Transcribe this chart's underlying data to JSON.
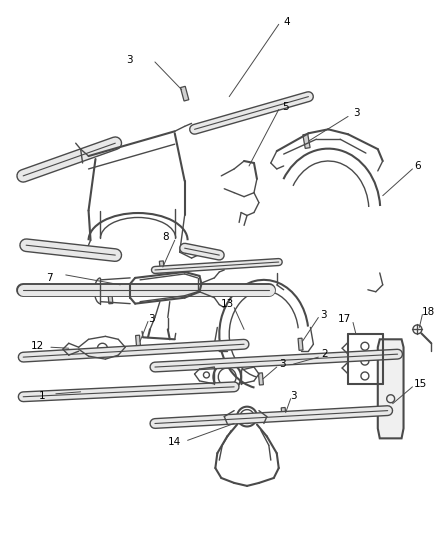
{
  "background_color": "#ffffff",
  "line_color": "#4a4a4a",
  "label_color": "#000000",
  "figsize": [
    4.38,
    5.33
  ],
  "dpi": 100
}
